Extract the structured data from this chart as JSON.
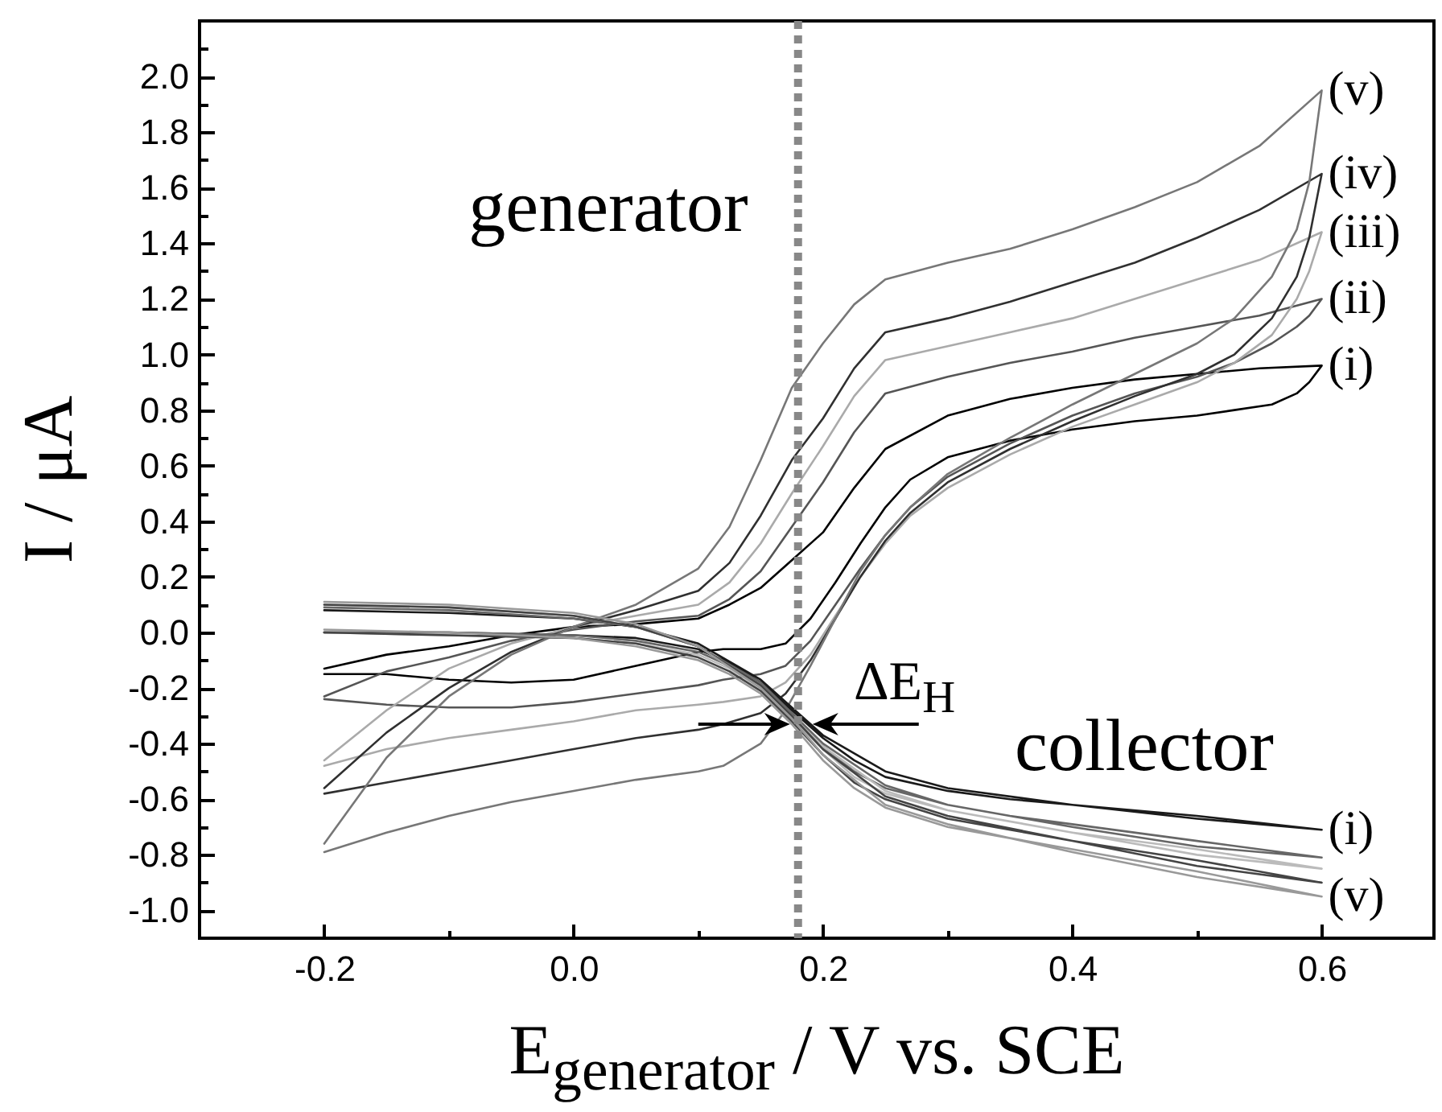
{
  "chart_data": {
    "type": "line",
    "xlabel": "E$_{generator}$ / V vs. SCE",
    "ylabel": "I / μA",
    "xlim": [
      -0.3,
      0.69
    ],
    "ylim": [
      -1.1,
      2.2
    ],
    "xticks": [
      {
        "value": -0.2,
        "label": "-0.2"
      },
      {
        "value": -0.1,
        "label": null
      },
      {
        "value": 0.0,
        "label": "0.0"
      },
      {
        "value": 0.1,
        "label": null
      },
      {
        "value": 0.2,
        "label": "0.2"
      },
      {
        "value": 0.3,
        "label": null
      },
      {
        "value": 0.4,
        "label": "0.4"
      },
      {
        "value": 0.5,
        "label": null
      },
      {
        "value": 0.6,
        "label": "0.6"
      }
    ],
    "yticks": [
      {
        "value": -1.0,
        "label": "-1.0"
      },
      {
        "value": -0.9,
        "label": null
      },
      {
        "value": -0.8,
        "label": "-0.8"
      },
      {
        "value": -0.7,
        "label": null
      },
      {
        "value": -0.6,
        "label": "-0.6"
      },
      {
        "value": -0.5,
        "label": null
      },
      {
        "value": -0.4,
        "label": "-0.4"
      },
      {
        "value": -0.3,
        "label": null
      },
      {
        "value": -0.2,
        "label": "-0.2"
      },
      {
        "value": -0.1,
        "label": null
      },
      {
        "value": 0.0,
        "label": "0.0"
      },
      {
        "value": 0.1,
        "label": null
      },
      {
        "value": 0.2,
        "label": "0.2"
      },
      {
        "value": 0.3,
        "label": null
      },
      {
        "value": 0.4,
        "label": "0.4"
      },
      {
        "value": 0.5,
        "label": null
      },
      {
        "value": 0.6,
        "label": "0.6"
      },
      {
        "value": 0.7,
        "label": null
      },
      {
        "value": 0.8,
        "label": "0.8"
      },
      {
        "value": 0.9,
        "label": null
      },
      {
        "value": 1.0,
        "label": "1.0"
      },
      {
        "value": 1.1,
        "label": null
      },
      {
        "value": 1.2,
        "label": "1.2"
      },
      {
        "value": 1.3,
        "label": null
      },
      {
        "value": 1.4,
        "label": "1.4"
      },
      {
        "value": 1.5,
        "label": null
      },
      {
        "value": 1.6,
        "label": "1.6"
      },
      {
        "value": 1.7,
        "label": null
      },
      {
        "value": 1.8,
        "label": "1.8"
      },
      {
        "value": 1.9,
        "label": null
      },
      {
        "value": 2.0,
        "label": "2.0"
      },
      {
        "value": 2.1,
        "label": null
      }
    ],
    "series": [
      {
        "name": "(i)",
        "color": "#000000",
        "x": [
          -0.2,
          -0.15,
          -0.1,
          -0.05,
          0.0,
          0.05,
          0.1,
          0.125,
          0.15,
          0.175,
          0.2,
          0.225,
          0.25,
          0.3,
          0.35,
          0.4,
          0.45,
          0.5,
          0.55,
          0.6,
          0.59,
          0.58,
          0.56,
          0.53,
          0.5,
          0.45,
          0.4,
          0.35,
          0.3,
          0.27,
          0.25,
          0.23,
          0.21,
          0.19,
          0.17,
          0.15,
          0.12,
          0.1,
          0.05,
          0.0,
          -0.05,
          -0.1,
          -0.15,
          -0.2
        ],
        "values": [
          -0.13,
          -0.08,
          -0.05,
          -0.01,
          0.02,
          0.03,
          0.05,
          0.1,
          0.16,
          0.26,
          0.36,
          0.52,
          0.66,
          0.78,
          0.84,
          0.88,
          0.91,
          0.93,
          0.95,
          0.96,
          0.9,
          0.86,
          0.82,
          0.8,
          0.78,
          0.76,
          0.73,
          0.69,
          0.63,
          0.55,
          0.45,
          0.32,
          0.18,
          0.05,
          -0.04,
          -0.06,
          -0.06,
          -0.07,
          -0.12,
          -0.17,
          -0.18,
          -0.17,
          -0.15,
          -0.15
        ]
      },
      {
        "name": "(ii)",
        "color": "#555555",
        "x": [
          -0.2,
          -0.15,
          -0.1,
          -0.05,
          0.0,
          0.05,
          0.1,
          0.125,
          0.15,
          0.175,
          0.2,
          0.225,
          0.25,
          0.3,
          0.35,
          0.4,
          0.45,
          0.5,
          0.55,
          0.6,
          0.59,
          0.58,
          0.56,
          0.53,
          0.5,
          0.45,
          0.4,
          0.35,
          0.3,
          0.27,
          0.25,
          0.23,
          0.21,
          0.19,
          0.17,
          0.15,
          0.12,
          0.1,
          0.05,
          0.0,
          -0.05,
          -0.1,
          -0.15,
          -0.2
        ],
        "values": [
          -0.23,
          -0.14,
          -0.09,
          -0.03,
          0.01,
          0.04,
          0.06,
          0.12,
          0.22,
          0.38,
          0.54,
          0.72,
          0.86,
          0.92,
          0.97,
          1.01,
          1.06,
          1.1,
          1.14,
          1.2,
          1.14,
          1.1,
          1.04,
          0.97,
          0.92,
          0.86,
          0.78,
          0.68,
          0.56,
          0.45,
          0.35,
          0.23,
          0.1,
          -0.03,
          -0.12,
          -0.15,
          -0.17,
          -0.19,
          -0.22,
          -0.25,
          -0.27,
          -0.27,
          -0.26,
          -0.24
        ]
      },
      {
        "name": "(iii)",
        "color": "#aaaaaa",
        "x": [
          -0.2,
          -0.15,
          -0.1,
          -0.05,
          0.0,
          0.05,
          0.1,
          0.125,
          0.15,
          0.175,
          0.2,
          0.225,
          0.25,
          0.3,
          0.35,
          0.4,
          0.45,
          0.5,
          0.55,
          0.6,
          0.59,
          0.58,
          0.56,
          0.53,
          0.5,
          0.45,
          0.4,
          0.35,
          0.3,
          0.27,
          0.25,
          0.23,
          0.21,
          0.19,
          0.17,
          0.15,
          0.12,
          0.1,
          0.05,
          0.0,
          -0.05,
          -0.1,
          -0.15,
          -0.2
        ],
        "values": [
          -0.46,
          -0.28,
          -0.13,
          -0.04,
          0.02,
          0.06,
          0.1,
          0.18,
          0.32,
          0.5,
          0.67,
          0.85,
          0.98,
          1.03,
          1.08,
          1.13,
          1.2,
          1.27,
          1.34,
          1.44,
          1.3,
          1.2,
          1.07,
          0.97,
          0.9,
          0.82,
          0.74,
          0.64,
          0.52,
          0.42,
          0.32,
          0.2,
          0.06,
          -0.08,
          -0.18,
          -0.23,
          -0.25,
          -0.26,
          -0.28,
          -0.32,
          -0.35,
          -0.38,
          -0.42,
          -0.48
        ]
      },
      {
        "name": "(iv)",
        "color": "#303030",
        "x": [
          -0.2,
          -0.15,
          -0.1,
          -0.05,
          0.0,
          0.05,
          0.1,
          0.125,
          0.15,
          0.175,
          0.2,
          0.225,
          0.25,
          0.3,
          0.35,
          0.4,
          0.45,
          0.5,
          0.55,
          0.6,
          0.59,
          0.58,
          0.56,
          0.53,
          0.5,
          0.45,
          0.4,
          0.35,
          0.3,
          0.27,
          0.25,
          0.23,
          0.21,
          0.19,
          0.17,
          0.15,
          0.12,
          0.1,
          0.05,
          0.0,
          -0.05,
          -0.1,
          -0.15,
          -0.2
        ],
        "values": [
          -0.56,
          -0.36,
          -0.2,
          -0.07,
          0.02,
          0.08,
          0.15,
          0.25,
          0.42,
          0.62,
          0.77,
          0.95,
          1.08,
          1.13,
          1.19,
          1.26,
          1.33,
          1.42,
          1.52,
          1.65,
          1.42,
          1.28,
          1.13,
          1.0,
          0.93,
          0.85,
          0.76,
          0.66,
          0.54,
          0.43,
          0.33,
          0.2,
          0.05,
          -0.1,
          -0.22,
          -0.29,
          -0.33,
          -0.35,
          -0.38,
          -0.42,
          -0.46,
          -0.5,
          -0.54,
          -0.58
        ]
      },
      {
        "name": "(v)",
        "color": "#777777",
        "x": [
          -0.2,
          -0.15,
          -0.1,
          -0.05,
          0.0,
          0.05,
          0.1,
          0.125,
          0.15,
          0.175,
          0.2,
          0.225,
          0.25,
          0.3,
          0.35,
          0.4,
          0.45,
          0.5,
          0.55,
          0.6,
          0.59,
          0.58,
          0.56,
          0.53,
          0.5,
          0.45,
          0.4,
          0.35,
          0.3,
          0.27,
          0.25,
          0.23,
          0.21,
          0.19,
          0.17,
          0.15,
          0.12,
          0.1,
          0.05,
          0.0,
          -0.05,
          -0.1,
          -0.15,
          -0.2
        ],
        "values": [
          -0.76,
          -0.45,
          -0.23,
          -0.08,
          0.02,
          0.1,
          0.23,
          0.38,
          0.62,
          0.88,
          1.04,
          1.18,
          1.27,
          1.33,
          1.38,
          1.45,
          1.53,
          1.62,
          1.75,
          1.95,
          1.62,
          1.45,
          1.28,
          1.13,
          1.04,
          0.93,
          0.82,
          0.7,
          0.57,
          0.45,
          0.35,
          0.22,
          0.05,
          -0.12,
          -0.28,
          -0.4,
          -0.48,
          -0.5,
          -0.53,
          -0.57,
          -0.61,
          -0.66,
          -0.72,
          -0.79
        ]
      },
      {
        "name": "(i)",
        "color": "#1a1a1a",
        "x": [
          -0.2,
          -0.1,
          0.0,
          0.05,
          0.1,
          0.125,
          0.15,
          0.175,
          0.2,
          0.225,
          0.25,
          0.3,
          0.35,
          0.4,
          0.5,
          0.6,
          0.5,
          0.4,
          0.3,
          0.25,
          0.2,
          0.175,
          0.15,
          0.1,
          0.05,
          0.0,
          -0.1,
          -0.2
        ],
        "values": [
          0.0,
          0.0,
          -0.01,
          -0.02,
          -0.06,
          -0.11,
          -0.18,
          -0.28,
          -0.38,
          -0.46,
          -0.52,
          -0.57,
          -0.6,
          -0.62,
          -0.66,
          -0.71,
          -0.67,
          -0.62,
          -0.56,
          -0.5,
          -0.37,
          -0.27,
          -0.17,
          -0.04,
          0.02,
          0.05,
          0.07,
          0.08
        ]
      },
      {
        "color": "#666666",
        "x": [
          -0.2,
          -0.1,
          0.0,
          0.05,
          0.1,
          0.125,
          0.15,
          0.175,
          0.2,
          0.225,
          0.25,
          0.3,
          0.35,
          0.4,
          0.5,
          0.6,
          0.5,
          0.4,
          0.3,
          0.25,
          0.2,
          0.175,
          0.15,
          0.1,
          0.05,
          0.0,
          -0.1,
          -0.2
        ],
        "values": [
          0.0,
          0.0,
          -0.01,
          -0.03,
          -0.07,
          -0.12,
          -0.19,
          -0.3,
          -0.41,
          -0.5,
          -0.56,
          -0.62,
          -0.66,
          -0.69,
          -0.75,
          -0.81,
          -0.77,
          -0.7,
          -0.62,
          -0.55,
          -0.4,
          -0.29,
          -0.18,
          -0.05,
          0.02,
          0.05,
          0.08,
          0.09
        ]
      },
      {
        "color": "#bbbbbb",
        "x": [
          -0.2,
          -0.1,
          0.0,
          0.05,
          0.1,
          0.125,
          0.15,
          0.175,
          0.2,
          0.225,
          0.25,
          0.3,
          0.35,
          0.4,
          0.5,
          0.6,
          0.5,
          0.4,
          0.3,
          0.25,
          0.2,
          0.175,
          0.15,
          0.1,
          0.05,
          0.0,
          -0.1,
          -0.2
        ],
        "values": [
          0.0,
          -0.01,
          -0.02,
          -0.04,
          -0.08,
          -0.13,
          -0.2,
          -0.31,
          -0.42,
          -0.52,
          -0.58,
          -0.64,
          -0.68,
          -0.72,
          -0.78,
          -0.85,
          -0.8,
          -0.72,
          -0.64,
          -0.57,
          -0.41,
          -0.3,
          -0.19,
          -0.05,
          0.02,
          0.06,
          0.09,
          0.1
        ]
      },
      {
        "color": "#444444",
        "x": [
          -0.2,
          -0.1,
          0.0,
          0.05,
          0.1,
          0.125,
          0.15,
          0.175,
          0.2,
          0.225,
          0.25,
          0.3,
          0.35,
          0.4,
          0.5,
          0.6,
          0.5,
          0.4,
          0.3,
          0.25,
          0.2,
          0.175,
          0.15,
          0.1,
          0.05,
          0.0,
          -0.1,
          -0.2
        ],
        "values": [
          0.0,
          -0.01,
          -0.02,
          -0.04,
          -0.09,
          -0.14,
          -0.21,
          -0.32,
          -0.44,
          -0.54,
          -0.6,
          -0.67,
          -0.71,
          -0.75,
          -0.82,
          -0.9,
          -0.84,
          -0.75,
          -0.66,
          -0.59,
          -0.42,
          -0.3,
          -0.19,
          -0.05,
          0.02,
          0.06,
          0.09,
          0.1
        ]
      },
      {
        "name": "(v)",
        "color": "#999999",
        "x": [
          -0.2,
          -0.1,
          0.0,
          0.05,
          0.1,
          0.125,
          0.15,
          0.175,
          0.2,
          0.225,
          0.25,
          0.3,
          0.35,
          0.4,
          0.5,
          0.6,
          0.5,
          0.4,
          0.3,
          0.25,
          0.2,
          0.175,
          0.15,
          0.1,
          0.05,
          0.0,
          -0.1,
          -0.2
        ],
        "values": [
          0.01,
          0.0,
          -0.02,
          -0.05,
          -0.1,
          -0.15,
          -0.22,
          -0.33,
          -0.46,
          -0.56,
          -0.63,
          -0.7,
          -0.74,
          -0.78,
          -0.86,
          -0.95,
          -0.88,
          -0.79,
          -0.69,
          -0.62,
          -0.44,
          -0.31,
          -0.2,
          -0.05,
          0.03,
          0.07,
          0.1,
          0.11
        ]
      }
    ],
    "ref_lines": [
      {
        "axis": "x",
        "value": 0.18,
        "color": "#888888",
        "line_style": "dotted"
      }
    ],
    "annotations": [
      "generator",
      "collector",
      "ΔE$_{H}$"
    ]
  }
}
